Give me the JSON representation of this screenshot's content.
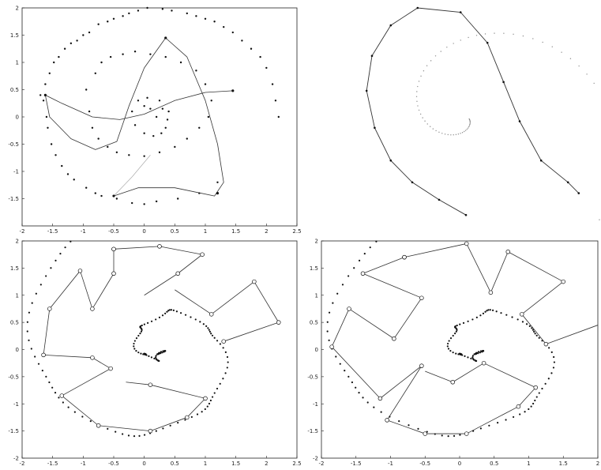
{
  "figure": {
    "description_colors": {
      "ink": "#111111",
      "frame": "#222222",
      "curve": "#333333",
      "scatter": "#444444"
    }
  },
  "chart_data": [
    {
      "type": "scatter",
      "panel": "top-left",
      "xlim": [
        -2,
        2.5
      ],
      "ylim": [
        -2,
        2
      ],
      "x_ticks": [
        "-2",
        "-1.5",
        "-1",
        "-0.5",
        "0",
        "0.5",
        "1",
        "1.5",
        "2",
        "2.5"
      ],
      "y_ticks": [
        "2",
        "1.5",
        "1",
        "0.5",
        "0",
        "-0.5",
        "-1",
        "-1.5"
      ],
      "grid": false,
      "scatter_points": [
        [
          -1.7,
          0.4
        ],
        [
          -1.65,
          0.3
        ],
        [
          -1.62,
          0.6
        ],
        [
          -1.6,
          0.0
        ],
        [
          -1.58,
          -0.2
        ],
        [
          -1.55,
          0.8
        ],
        [
          -1.52,
          -0.5
        ],
        [
          -1.48,
          1.0
        ],
        [
          -1.45,
          -0.7
        ],
        [
          -1.4,
          1.1
        ],
        [
          -1.35,
          -0.9
        ],
        [
          -1.3,
          1.25
        ],
        [
          -1.25,
          -1.05
        ],
        [
          -1.2,
          1.35
        ],
        [
          -1.15,
          -1.15
        ],
        [
          -1.1,
          1.4
        ],
        [
          -1.0,
          1.5
        ],
        [
          -0.95,
          -1.3
        ],
        [
          -0.9,
          1.55
        ],
        [
          -0.8,
          -1.4
        ],
        [
          -0.75,
          1.7
        ],
        [
          -0.7,
          -1.45
        ],
        [
          -0.6,
          1.75
        ],
        [
          -0.5,
          1.8
        ],
        [
          -0.45,
          -1.5
        ],
        [
          -0.35,
          1.85
        ],
        [
          -0.25,
          1.9
        ],
        [
          -0.2,
          -1.58
        ],
        [
          -0.1,
          1.95
        ],
        [
          0.0,
          -1.6
        ],
        [
          0.05,
          2.0
        ],
        [
          0.2,
          -1.55
        ],
        [
          0.3,
          1.98
        ],
        [
          0.45,
          1.95
        ],
        [
          0.55,
          -1.5
        ],
        [
          0.7,
          1.9
        ],
        [
          0.85,
          1.85
        ],
        [
          0.9,
          -1.4
        ],
        [
          1.0,
          1.8
        ],
        [
          1.15,
          1.75
        ],
        [
          1.2,
          -1.2
        ],
        [
          1.3,
          1.65
        ],
        [
          1.45,
          1.55
        ],
        [
          1.6,
          1.4
        ],
        [
          1.75,
          1.25
        ],
        [
          1.9,
          1.1
        ],
        [
          2.0,
          0.9
        ],
        [
          2.1,
          0.6
        ],
        [
          2.15,
          0.3
        ],
        [
          2.2,
          0.0
        ],
        [
          -0.95,
          0.5
        ],
        [
          -0.9,
          0.1
        ],
        [
          -0.85,
          -0.2
        ],
        [
          -0.8,
          0.8
        ],
        [
          -0.75,
          -0.4
        ],
        [
          -0.7,
          1.0
        ],
        [
          -0.6,
          -0.55
        ],
        [
          -0.55,
          1.1
        ],
        [
          -0.45,
          -0.65
        ],
        [
          -0.35,
          1.15
        ],
        [
          -0.25,
          -0.7
        ],
        [
          -0.15,
          1.2
        ],
        [
          0.0,
          -0.72
        ],
        [
          0.1,
          1.15
        ],
        [
          0.25,
          -0.65
        ],
        [
          0.35,
          1.1
        ],
        [
          0.5,
          -0.55
        ],
        [
          0.6,
          1.0
        ],
        [
          0.7,
          -0.4
        ],
        [
          0.85,
          0.85
        ],
        [
          0.9,
          -0.2
        ],
        [
          1.0,
          0.6
        ],
        [
          1.05,
          0.0
        ],
        [
          1.1,
          0.3
        ],
        [
          -0.2,
          0.1
        ],
        [
          -0.15,
          -0.15
        ],
        [
          -0.1,
          0.3
        ],
        [
          0.0,
          -0.3
        ],
        [
          0.05,
          0.35
        ],
        [
          0.15,
          -0.35
        ],
        [
          0.25,
          0.3
        ],
        [
          0.35,
          -0.2
        ],
        [
          0.4,
          0.1
        ],
        [
          0.38,
          -0.05
        ],
        [
          0.2,
          0.0
        ],
        [
          0.1,
          0.15
        ],
        [
          0.0,
          0.2
        ],
        [
          0.3,
          0.15
        ],
        [
          0.28,
          -0.3
        ]
      ],
      "curve_points": [
        [
          1.45,
          0.48
        ],
        [
          1.0,
          0.45
        ],
        [
          0.5,
          0.3
        ],
        [
          0.0,
          0.05
        ],
        [
          -0.4,
          -0.05
        ],
        [
          -0.85,
          0.0
        ],
        [
          -1.35,
          0.25
        ],
        [
          -1.62,
          0.4
        ],
        [
          -1.55,
          0.0
        ],
        [
          -1.2,
          -0.4
        ],
        [
          -0.8,
          -0.6
        ],
        [
          -0.45,
          -0.45
        ],
        [
          -0.25,
          0.2
        ],
        [
          0.0,
          0.9
        ],
        [
          0.35,
          1.45
        ],
        [
          0.7,
          1.1
        ],
        [
          1.0,
          0.3
        ],
        [
          1.2,
          -0.5
        ],
        [
          1.3,
          -1.2
        ],
        [
          1.15,
          -1.45
        ],
        [
          0.5,
          -1.3
        ],
        [
          -0.1,
          -1.3
        ],
        [
          -0.5,
          -1.45
        ]
      ],
      "curve2_points": [
        [
          -0.5,
          -1.45
        ],
        [
          -0.2,
          -1.1
        ],
        [
          0.1,
          -0.7
        ]
      ]
    },
    {
      "type": "scatter",
      "panel": "top-right",
      "grid": false,
      "polyline_points": [
        [
          0.5,
          0.05
        ],
        [
          0.4,
          0.12
        ],
        [
          0.3,
          0.2
        ],
        [
          0.22,
          0.3
        ],
        [
          0.16,
          0.45
        ],
        [
          0.13,
          0.62
        ],
        [
          0.15,
          0.78
        ],
        [
          0.22,
          0.92
        ],
        [
          0.32,
          1.0
        ],
        [
          0.48,
          0.98
        ],
        [
          0.58,
          0.84
        ],
        [
          0.64,
          0.66
        ],
        [
          0.7,
          0.48
        ],
        [
          0.78,
          0.3
        ],
        [
          0.88,
          0.2
        ],
        [
          0.92,
          0.15
        ]
      ]
    },
    {
      "type": "scatter",
      "panel": "bottom-left",
      "xlim": [
        -2,
        2.5
      ],
      "ylim": [
        -2,
        2
      ],
      "x_ticks": [
        "-2",
        "-1.5",
        "-1",
        "-0.5",
        "0",
        "0.5",
        "1",
        "1.5",
        "2",
        "2.5"
      ],
      "y_ticks": [
        "2",
        "1.5",
        "1",
        "0.5",
        "0",
        "-0.5",
        "-1",
        "-1.5",
        "-2"
      ],
      "grid": false,
      "segments": [
        [
          [
            -0.5,
            1.85
          ],
          [
            0.25,
            1.9
          ]
        ],
        [
          [
            0.25,
            1.9
          ],
          [
            0.95,
            1.75
          ]
        ],
        [
          [
            0.95,
            1.75
          ],
          [
            0.55,
            1.4
          ]
        ],
        [
          [
            0.55,
            1.4
          ],
          [
            0.0,
            1.0
          ]
        ],
        [
          [
            -0.5,
            1.85
          ],
          [
            -0.5,
            1.4
          ]
        ],
        [
          [
            -0.5,
            1.4
          ],
          [
            -0.85,
            0.75
          ]
        ],
        [
          [
            -0.85,
            0.75
          ],
          [
            -1.05,
            1.45
          ]
        ],
        [
          [
            -1.05,
            1.45
          ],
          [
            -1.55,
            0.75
          ]
        ],
        [
          [
            -1.55,
            0.75
          ],
          [
            -1.65,
            -0.1
          ]
        ],
        [
          [
            -1.65,
            -0.1
          ],
          [
            -0.85,
            -0.15
          ]
        ],
        [
          [
            -0.85,
            -0.15
          ],
          [
            -0.55,
            -0.35
          ]
        ],
        [
          [
            -0.55,
            -0.35
          ],
          [
            -1.35,
            -0.85
          ]
        ],
        [
          [
            -1.35,
            -0.85
          ],
          [
            -0.75,
            -1.4
          ]
        ],
        [
          [
            -0.75,
            -1.4
          ],
          [
            0.1,
            -1.5
          ]
        ],
        [
          [
            0.1,
            -1.5
          ],
          [
            0.7,
            -1.25
          ]
        ],
        [
          [
            0.7,
            -1.25
          ],
          [
            1.0,
            -0.9
          ]
        ],
        [
          [
            1.0,
            -0.9
          ],
          [
            0.1,
            -0.65
          ]
        ],
        [
          [
            0.1,
            -0.65
          ],
          [
            -0.3,
            -0.6
          ]
        ],
        [
          [
            1.3,
            0.15
          ],
          [
            2.2,
            0.5
          ]
        ],
        [
          [
            2.2,
            0.5
          ],
          [
            1.8,
            1.25
          ]
        ],
        [
          [
            1.8,
            1.25
          ],
          [
            1.1,
            0.65
          ]
        ],
        [
          [
            1.1,
            0.65
          ],
          [
            0.5,
            1.1
          ]
        ]
      ]
    },
    {
      "type": "scatter",
      "panel": "bottom-right",
      "xlim": [
        -2,
        2
      ],
      "ylim": [
        -2,
        2
      ],
      "x_ticks": [
        "-2",
        "-1.5",
        "-1",
        "-0.5",
        "0",
        "0.5",
        "1",
        "1.5",
        "2"
      ],
      "y_ticks": [
        "2",
        "1.5",
        "1",
        "0.5",
        "0",
        "-0.5",
        "-1",
        "-1.5",
        "-2"
      ],
      "grid": false,
      "segments": [
        [
          [
            -0.8,
            1.7
          ],
          [
            0.1,
            1.95
          ]
        ],
        [
          [
            0.1,
            1.95
          ],
          [
            0.45,
            1.05
          ]
        ],
        [
          [
            0.45,
            1.05
          ],
          [
            0.7,
            1.8
          ]
        ],
        [
          [
            0.7,
            1.8
          ],
          [
            1.5,
            1.25
          ]
        ],
        [
          [
            1.5,
            1.25
          ],
          [
            0.9,
            0.65
          ]
        ],
        [
          [
            0.9,
            0.65
          ],
          [
            1.25,
            0.1
          ]
        ],
        [
          [
            1.25,
            0.1
          ],
          [
            2.0,
            0.45
          ]
        ],
        [
          [
            -0.8,
            1.7
          ],
          [
            -1.4,
            1.4
          ]
        ],
        [
          [
            -1.4,
            1.4
          ],
          [
            -0.55,
            0.95
          ]
        ],
        [
          [
            -0.55,
            0.95
          ],
          [
            -0.95,
            0.2
          ]
        ],
        [
          [
            -0.95,
            0.2
          ],
          [
            -1.6,
            0.75
          ]
        ],
        [
          [
            -1.6,
            0.75
          ],
          [
            -1.85,
            0.05
          ]
        ],
        [
          [
            -1.85,
            0.05
          ],
          [
            -1.15,
            -0.9
          ]
        ],
        [
          [
            -1.15,
            -0.9
          ],
          [
            -0.55,
            -0.3
          ]
        ],
        [
          [
            -0.55,
            -0.3
          ],
          [
            -1.05,
            -1.3
          ]
        ],
        [
          [
            -1.05,
            -1.3
          ],
          [
            -0.5,
            -1.55
          ]
        ],
        [
          [
            -0.5,
            -1.55
          ],
          [
            0.1,
            -1.55
          ]
        ],
        [
          [
            0.1,
            -1.55
          ],
          [
            0.85,
            -1.05
          ]
        ],
        [
          [
            0.85,
            -1.05
          ],
          [
            1.1,
            -0.7
          ]
        ],
        [
          [
            1.1,
            -0.7
          ],
          [
            0.35,
            -0.25
          ]
        ],
        [
          [
            0.35,
            -0.25
          ],
          [
            -0.1,
            -0.6
          ]
        ],
        [
          [
            -0.1,
            -0.6
          ],
          [
            -0.5,
            -0.4
          ]
        ]
      ]
    }
  ]
}
